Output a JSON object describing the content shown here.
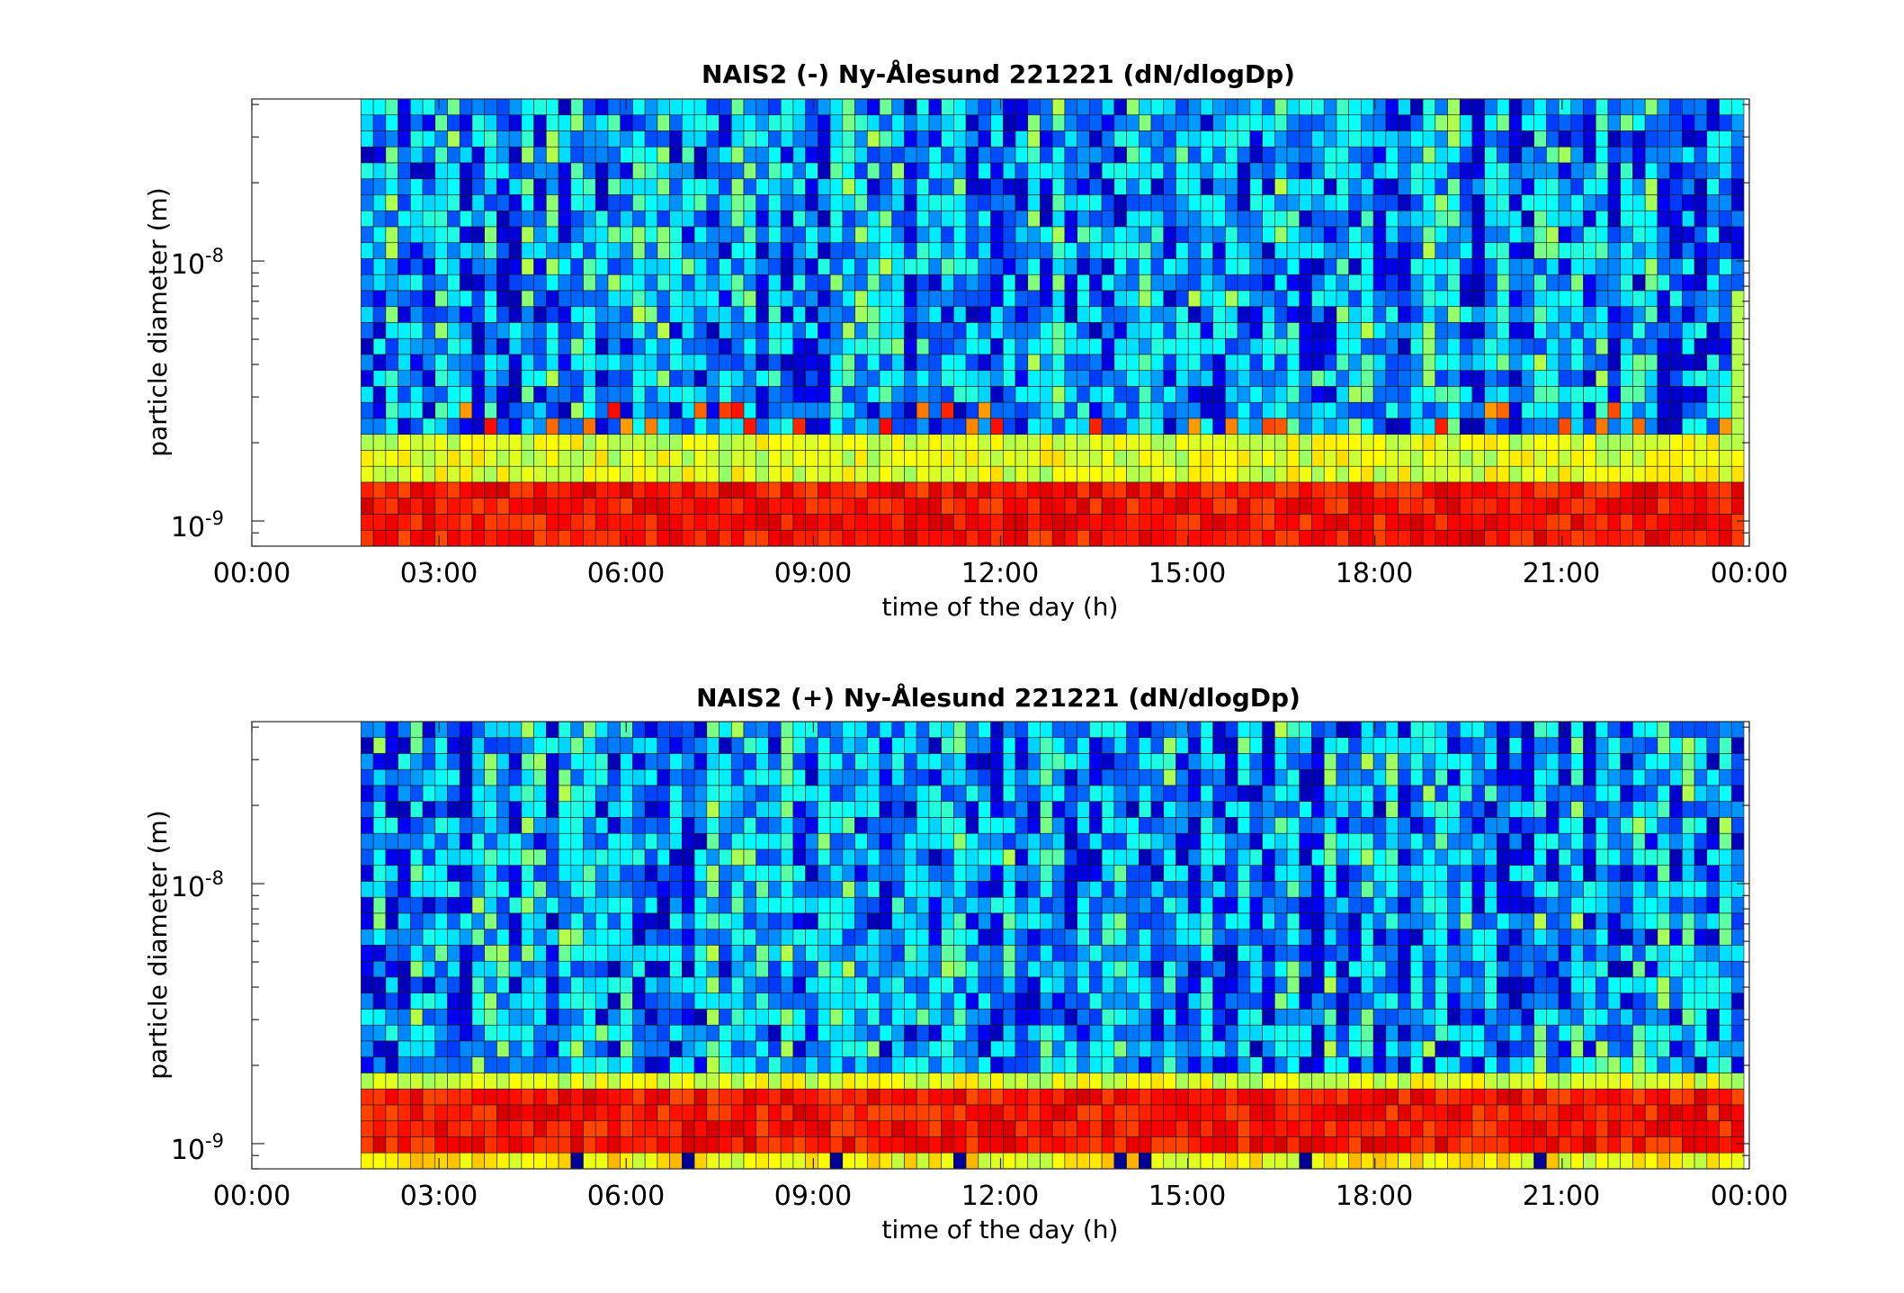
{
  "figure": {
    "background": "#ffffff",
    "colormap": "jet"
  },
  "chart_data": [
    {
      "type": "heatmap",
      "title": "NAIS2 (-) Ny-Ålesund 221221 (dN/dlogDp)",
      "xlabel": "time of the day (h)",
      "ylabel": "particle diameter (m)",
      "x_range_hours": [
        0,
        24
      ],
      "data_start_hour": 1.75,
      "x_ticks": [
        "00:00",
        "03:00",
        "06:00",
        "09:00",
        "12:00",
        "15:00",
        "18:00",
        "21:00",
        "00:00"
      ],
      "y_scale": "log",
      "y_range_m": [
        8e-10,
        4.2e-08
      ],
      "y_ticks": [
        {
          "base": "10",
          "exp": "-9"
        },
        {
          "base": "10",
          "exp": "-8"
        }
      ],
      "grid": false,
      "size_bins": 28,
      "time_bins": 112,
      "pattern": {
        "nucleation_band_bins": 4,
        "transition_bins": 3,
        "ion_cluster_bins": [
          6,
          7,
          8
        ],
        "seed": 7
      }
    },
    {
      "type": "heatmap",
      "title": "NAIS2 (+) Ny-Ålesund 221221 (dN/dlogDp)",
      "xlabel": "time of the day (h)",
      "ylabel": "particle diameter (m)",
      "x_range_hours": [
        0,
        24
      ],
      "data_start_hour": 1.75,
      "x_ticks": [
        "00:00",
        "03:00",
        "06:00",
        "09:00",
        "12:00",
        "15:00",
        "18:00",
        "21:00",
        "00:00"
      ],
      "y_scale": "log",
      "y_range_m": [
        8e-10,
        4.2e-08
      ],
      "y_ticks": [
        {
          "base": "10",
          "exp": "-9"
        },
        {
          "base": "10",
          "exp": "-8"
        }
      ],
      "grid": false,
      "size_bins": 28,
      "time_bins": 112,
      "pattern": {
        "nucleation_band_bins": 5,
        "transition_bins": 1,
        "ion_cluster_bins": [],
        "seed": 13
      }
    }
  ]
}
